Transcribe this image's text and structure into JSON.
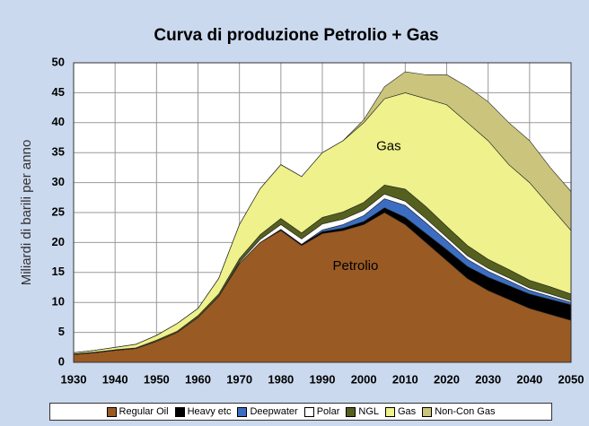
{
  "chart_data": {
    "type": "stacked-area",
    "title": "Curva di produzione Petrolio + Gas",
    "y_label": "Miliardi di barili per anno",
    "annotations": [
      "Gas",
      "Petrolio"
    ],
    "x": [
      1930,
      1935,
      1940,
      1945,
      1950,
      1955,
      1960,
      1965,
      1970,
      1975,
      1980,
      1985,
      1990,
      1995,
      2000,
      2005,
      2010,
      2015,
      2020,
      2025,
      2030,
      2035,
      2040,
      2045,
      2050
    ],
    "xlim": [
      1930,
      2050
    ],
    "xticks": [
      1930,
      1940,
      1950,
      1960,
      1970,
      1980,
      1990,
      2000,
      2010,
      2020,
      2030,
      2040,
      2050
    ],
    "ylim": [
      0,
      50
    ],
    "yticks": [
      0,
      5,
      10,
      15,
      20,
      25,
      30,
      35,
      40,
      45,
      50
    ],
    "grid": true,
    "legend": "bottom",
    "series": [
      {
        "name": "Regular Oil",
        "color": "#9a5a24",
        "values": [
          1.3,
          1.6,
          2.0,
          2.3,
          3.5,
          5,
          7.5,
          11,
          16.5,
          20,
          22,
          19.5,
          21.5,
          22,
          23,
          25,
          23,
          20,
          17,
          14,
          12,
          10.5,
          9,
          8,
          7
        ]
      },
      {
        "name": "Heavy etc",
        "color": "#000000",
        "values": [
          0,
          0,
          0,
          0,
          0,
          0,
          0,
          0,
          0,
          0,
          0.2,
          0.2,
          0.3,
          0.4,
          0.5,
          0.8,
          1.2,
          1.5,
          1.8,
          2,
          2.2,
          2.3,
          2.4,
          2.5,
          2.6
        ]
      },
      {
        "name": "Deepwater",
        "color": "#3b6ec2",
        "values": [
          0,
          0,
          0,
          0,
          0,
          0,
          0,
          0,
          0,
          0,
          0,
          0,
          0.3,
          0.6,
          1,
          1.5,
          2,
          1.8,
          1.5,
          1.2,
          1,
          0.8,
          0.6,
          0.5,
          0.4
        ]
      },
      {
        "name": "Polar",
        "color": "#ffffff",
        "values": [
          0,
          0,
          0,
          0,
          0,
          0,
          0,
          0,
          0.2,
          0.5,
          0.8,
          0.9,
          1,
          0.9,
          0.9,
          0.8,
          0.7,
          0.7,
          0.6,
          0.6,
          0.5,
          0.5,
          0.4,
          0.4,
          0.3
        ]
      },
      {
        "name": "NGL",
        "color": "#55601f",
        "values": [
          0.1,
          0.1,
          0.1,
          0.1,
          0.2,
          0.2,
          0.3,
          0.4,
          0.6,
          0.8,
          1,
          1,
          1.1,
          1.2,
          1.3,
          1.5,
          2,
          2,
          1.8,
          1.7,
          1.5,
          1.4,
          1.3,
          1.2,
          1.1
        ]
      },
      {
        "name": "Gas",
        "color": "#eef18c",
        "values": [
          0.2,
          0.3,
          0.4,
          0.6,
          0.8,
          1.3,
          1.2,
          2.6,
          5.7,
          7.7,
          9,
          9.4,
          10.8,
          11.9,
          13.3,
          14.4,
          16.1,
          18,
          20.3,
          20.5,
          19.8,
          17.5,
          16.3,
          13.4,
          10.6
        ]
      },
      {
        "name": "Non-Con Gas",
        "color": "#cbc47c",
        "values": [
          0,
          0,
          0,
          0,
          0,
          0,
          0,
          0,
          0,
          0,
          0,
          0,
          0,
          0,
          0.5,
          2,
          3.5,
          4,
          5,
          6,
          6.5,
          7,
          7,
          6.5,
          6.5
        ]
      }
    ]
  }
}
